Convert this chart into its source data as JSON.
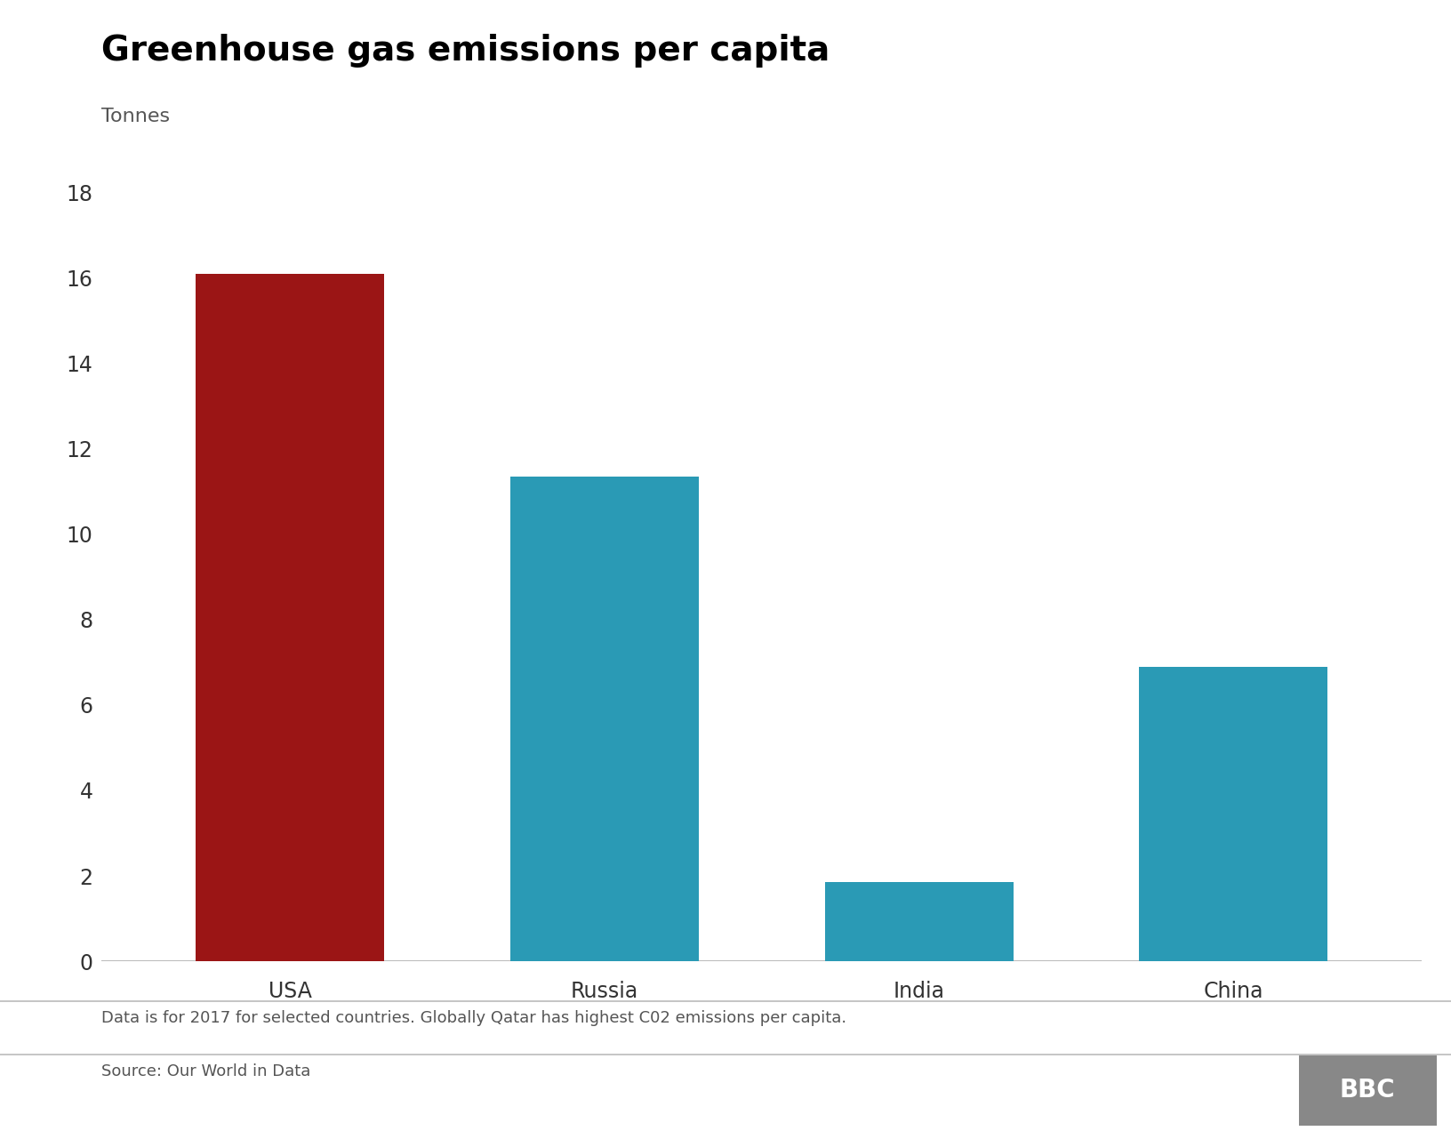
{
  "title": "Greenhouse gas emissions per capita",
  "subtitle": "Tonnes",
  "categories": [
    "USA",
    "Russia",
    "India",
    "China"
  ],
  "values": [
    16.1,
    11.35,
    1.85,
    6.9
  ],
  "bar_colors": [
    "#9b1515",
    "#2a9ab5",
    "#2a9ab5",
    "#2a9ab5"
  ],
  "ylim": [
    0,
    18
  ],
  "yticks": [
    0,
    2,
    4,
    6,
    8,
    10,
    12,
    14,
    16,
    18
  ],
  "background_color": "#ffffff",
  "title_fontsize": 28,
  "subtitle_fontsize": 16,
  "tick_fontsize": 17,
  "footer_note": "Data is for 2017 for selected countries. Globally Qatar has highest C02 emissions per capita.",
  "source_text": "Source: Our World in Data",
  "bbc_text": "BBC",
  "title_color": "#000000",
  "subtitle_color": "#555555",
  "tick_color": "#333333",
  "footer_color": "#555555",
  "axis_line_color": "#bbbbbb",
  "bar_width": 0.6
}
